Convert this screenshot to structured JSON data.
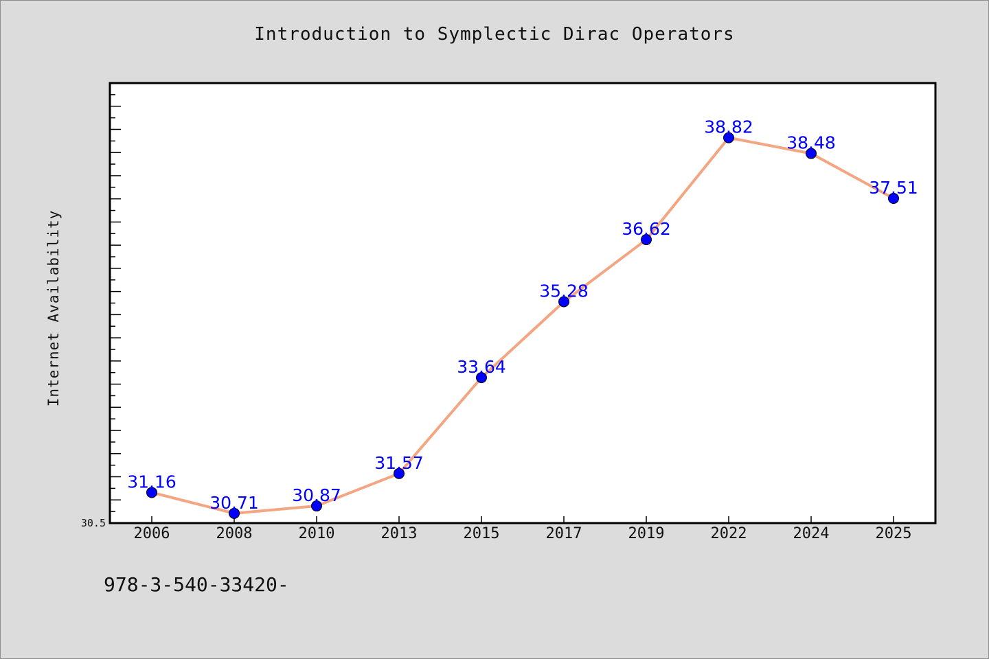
{
  "chart_data": {
    "type": "line",
    "title": "Introduction to Symplectic Dirac Operators",
    "xlabel": "",
    "ylabel": "Internet Availability",
    "categories": [
      "2006",
      "2008",
      "2010",
      "2013",
      "2015",
      "2017",
      "2019",
      "2022",
      "2024",
      "2025"
    ],
    "series": [
      {
        "values": [
          31.16,
          30.71,
          30.87,
          31.57,
          33.64,
          35.28,
          36.62,
          38.82,
          38.48,
          37.51
        ],
        "labels": [
          "31.16",
          "30.71",
          "30.87",
          "31.57",
          "33.64",
          "35.28",
          "36.62",
          "38.82",
          "38.48",
          "37.51"
        ]
      }
    ],
    "ylim": [
      30.5,
      40.0
    ],
    "yticks": [
      "30.5"
    ],
    "grid": false,
    "colors": {
      "line": "#f4a582",
      "marker": "#0000ff",
      "label": "#0000ff",
      "background": "#dcdcdc",
      "plot_area": "#ffffff"
    }
  },
  "footer": {
    "text": "978-3-540-33420-"
  }
}
